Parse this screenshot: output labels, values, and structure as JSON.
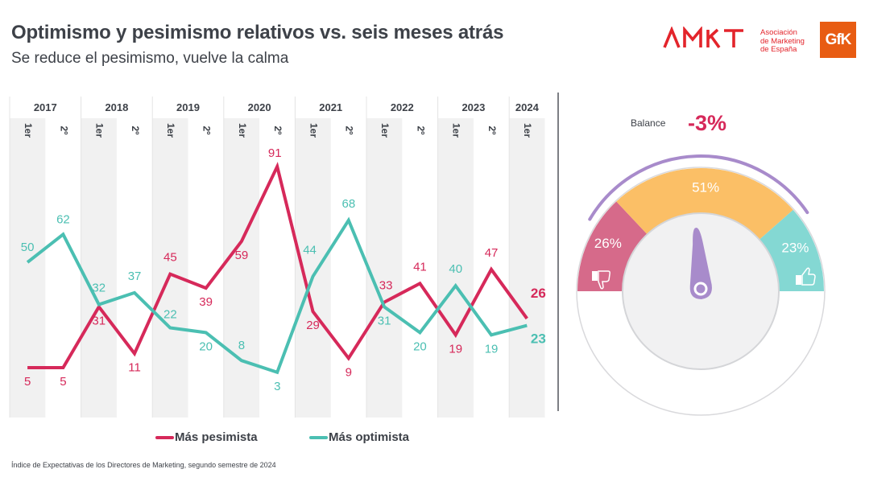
{
  "header": {
    "title": "Optimismo y pesimismo relativos vs. seis meses atrás",
    "subtitle": "Se reduce el pesimismo, vuelve la calma"
  },
  "logos": {
    "amkt_wordmark": "AMKT",
    "amkt_lines": [
      "Asociación",
      "de Marketing",
      "de España"
    ],
    "gfk": "GfK"
  },
  "colors": {
    "pesimista": "#d6295a",
    "optimista": "#4bbfb2",
    "band": "#f1f1f1",
    "gauge_neg": "#d66a8a",
    "gauge_neutral": "#fbbf66",
    "gauge_pos": "#84d8d3",
    "needle": "#a88bcb",
    "brand_red": "#e3242b",
    "brand_orange": "#e85c12"
  },
  "chart_data": {
    "type": "line",
    "title": "Optimismo y pesimismo relativos vs. seis meses atrás",
    "subtitle": "Se reduce el pesimismo, vuelve la calma",
    "xlabel": "",
    "ylabel": "",
    "ylim": [
      0,
      100
    ],
    "grid": false,
    "legend_position": "bottom",
    "years": [
      "2017",
      "2018",
      "2019",
      "2020",
      "2021",
      "2022",
      "2023",
      "2024"
    ],
    "categories": [
      "1er",
      "2º",
      "1er",
      "2º",
      "1er",
      "2º",
      "1er",
      "2º",
      "1er",
      "2º",
      "1er",
      "2º",
      "1er",
      "2º",
      "1er"
    ],
    "category_years": [
      "2017",
      "2017",
      "2018",
      "2018",
      "2019",
      "2019",
      "2020",
      "2020",
      "2021",
      "2021",
      "2022",
      "2022",
      "2023",
      "2023",
      "2024"
    ],
    "series": [
      {
        "name": "Más pesimista",
        "key": "pesimista",
        "values": [
          5,
          5,
          31,
          11,
          45,
          39,
          59,
          91,
          29,
          9,
          33,
          41,
          19,
          47,
          26
        ]
      },
      {
        "name": "Más optimista",
        "key": "optimista",
        "values": [
          50,
          62,
          32,
          37,
          22,
          20,
          8,
          3,
          44,
          68,
          31,
          20,
          40,
          19,
          23
        ]
      }
    ]
  },
  "legend": {
    "pesimista": "Más pesimista",
    "optimista": "Más optimista"
  },
  "gauge": {
    "balance_label": "Balance",
    "balance_value": "-3%",
    "segments": [
      {
        "name": "pesimista",
        "value": 26,
        "label": "26%",
        "icon": "thumbs-down-icon"
      },
      {
        "name": "neutral",
        "value": 51,
        "label": "51%",
        "icon": ""
      },
      {
        "name": "optimista",
        "value": 23,
        "label": "23%",
        "icon": "thumbs-up-icon"
      }
    ],
    "needle_balance_pct": -3
  },
  "footnote": "Índice de Expectativas de los Directores de Marketing, segundo semestre de 2024"
}
